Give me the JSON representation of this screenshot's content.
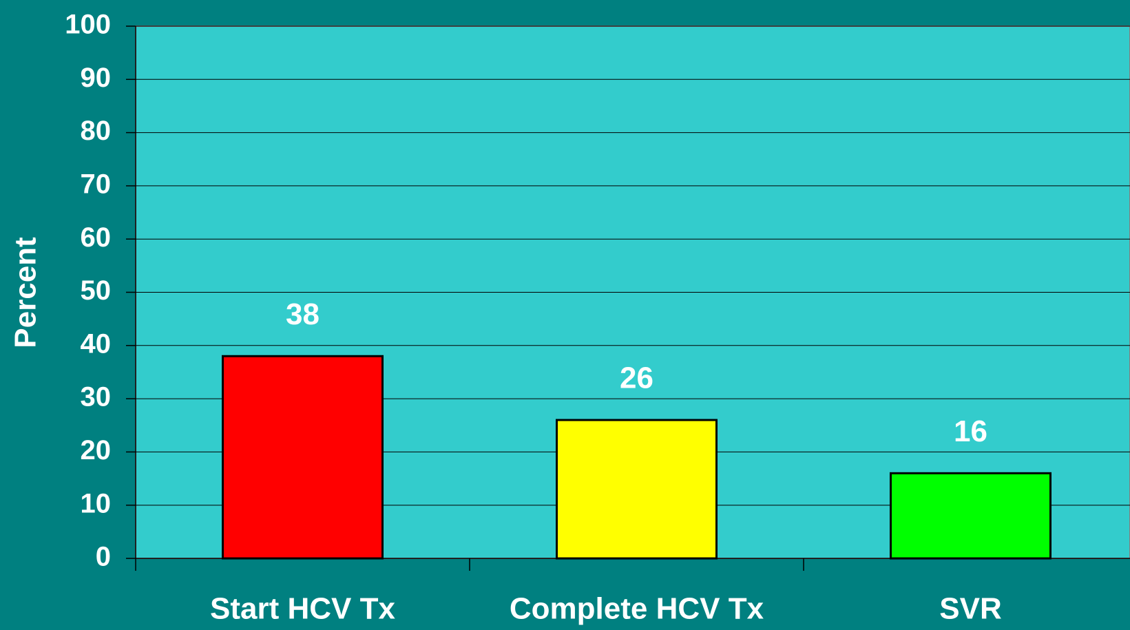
{
  "chart_data": {
    "type": "bar",
    "y_label": "Percent",
    "categories": [
      "Start HCV Tx",
      "Complete HCV Tx",
      "SVR"
    ],
    "values": [
      38,
      26,
      16
    ],
    "colors": [
      "#ff0000",
      "#ffff00",
      "#00ff00"
    ],
    "ylim": [
      0,
      100
    ],
    "yticks": [
      0,
      10,
      20,
      30,
      40,
      50,
      60,
      70,
      80,
      90,
      100
    ],
    "grid": true
  }
}
